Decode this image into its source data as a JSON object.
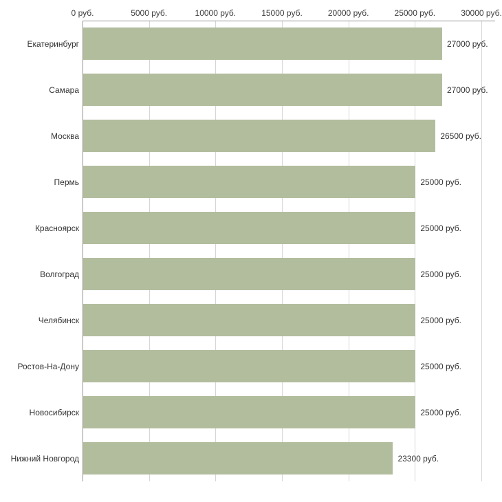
{
  "chart_data": {
    "type": "bar",
    "orientation": "horizontal",
    "title": "",
    "xlabel": "",
    "ylabel": "",
    "categories": [
      "Екатеринбург",
      "Самара",
      "Москва",
      "Пермь",
      "Красноярск",
      "Волгоград",
      "Челябинск",
      "Ростов-На-Дону",
      "Новосибирск",
      "Нижний Новгород"
    ],
    "values": [
      27000,
      27000,
      26500,
      25000,
      25000,
      25000,
      25000,
      25000,
      25000,
      23300
    ],
    "value_labels": [
      "27000 руб.",
      "27000 руб.",
      "26500 руб.",
      "25000 руб.",
      "25000 руб.",
      "25000 руб.",
      "25000 руб.",
      "25000 руб.",
      "25000 руб.",
      "23300 руб."
    ],
    "x_ticks": [
      0,
      5000,
      10000,
      15000,
      20000,
      25000,
      30000
    ],
    "x_tick_labels": [
      "0 руб.",
      "5000 руб.",
      "10000 руб.",
      "15000 руб.",
      "20000 руб.",
      "25000 руб.",
      "30000 руб."
    ],
    "xlim": [
      0,
      30000
    ],
    "bar_color": "#b2bd9e",
    "grid": true,
    "legend": false,
    "axis_position": "top"
  }
}
